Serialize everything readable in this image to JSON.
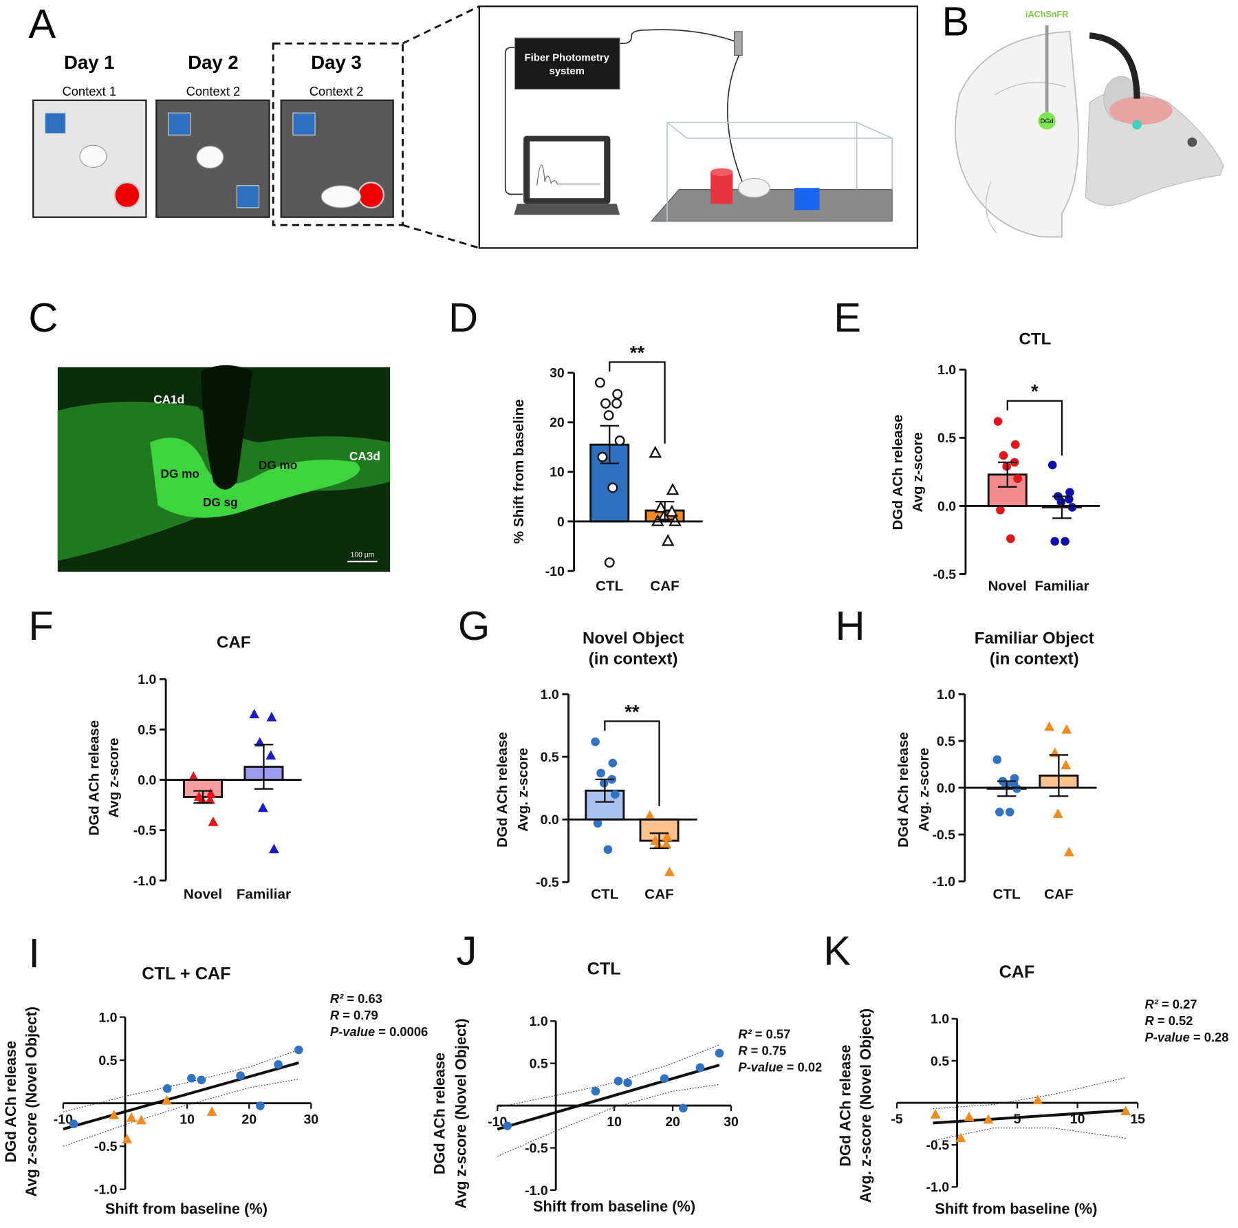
{
  "panel_a": {
    "letter": "A",
    "days": [
      {
        "day": "Day 1",
        "context": "Context 1"
      },
      {
        "day": "Day 2",
        "context": "Context 2"
      },
      {
        "day": "Day 3",
        "context": "Context 2"
      }
    ],
    "system": [
      "Fiber Photometry",
      "system"
    ]
  },
  "panel_b": {
    "letter": "B",
    "sensor": "iAChSnFR",
    "region": "DGd"
  },
  "panel_c": {
    "letter": "C",
    "regions": [
      "CA1d",
      "DG mo",
      "DG mo",
      "DG sg",
      "CA3d"
    ],
    "scale_bar": "100 µm"
  },
  "chart_data": [
    {
      "type": "bar",
      "panel": "D",
      "ylabel": [
        "% Shift from baseline"
      ],
      "categories": [
        "CTL",
        "CAF"
      ],
      "values": [
        15.5,
        2.2
      ],
      "errors": [
        3.8,
        1.8
      ],
      "colors": [
        "#2f6fc0",
        "#f28a1e"
      ],
      "points": [
        [
          28,
          25.7,
          23.8,
          23.8,
          21.4,
          16.3,
          13.0,
          6.8,
          -8.3
        ],
        [
          13.8,
          6.3,
          2.7,
          1.9,
          1.0,
          0,
          0,
          -4.0
        ]
      ],
      "markers": [
        "circle",
        "triangle"
      ],
      "marker_colors": [
        "#ffffff",
        "#ffffff"
      ],
      "marker_outline": true,
      "ylim": [
        -10,
        30
      ],
      "yticks": [
        -10,
        0,
        10,
        20,
        30
      ],
      "significance": "**"
    },
    {
      "type": "bar",
      "panel": "E",
      "title": [
        "CTL"
      ],
      "ylabel": [
        "DGd ACh release",
        "Avg z-score"
      ],
      "categories": [
        "Novel",
        "Familiar"
      ],
      "values": [
        0.23,
        -0.01
      ],
      "errors": [
        0.09,
        0.08
      ],
      "colors": [
        "#f28b8b",
        "#ffffff"
      ],
      "points": [
        [
          0.62,
          0.45,
          0.37,
          0.32,
          0.29,
          0.2,
          -0.03,
          -0.24
        ],
        [
          0.3,
          0.1,
          0.07,
          0.05,
          0.03,
          -0.01,
          -0.26,
          -0.26
        ]
      ],
      "markers": [
        "circle",
        "circle"
      ],
      "marker_colors": [
        "#e5141b",
        "#1010b0"
      ],
      "ylim": [
        -0.5,
        1
      ],
      "yticks": [
        -0.5,
        {
          "value": 0,
          "label": "0.0"
        },
        0.5,
        {
          "value": 1,
          "label": "1.0"
        }
      ],
      "significance": "*"
    },
    {
      "type": "bar",
      "panel": "F",
      "title": [
        "CAF"
      ],
      "ylabel": [
        "DGd ACh release",
        "Avg z-score"
      ],
      "categories": [
        "Novel",
        "Familiar"
      ],
      "values": [
        -0.17,
        0.13
      ],
      "errors": [
        0.06,
        0.22
      ],
      "colors": [
        "#f4a0a0",
        "#9b9bef"
      ],
      "points": [
        [
          0.03,
          -0.14,
          -0.17,
          -0.2,
          -0.2,
          -0.42
        ],
        [
          0.65,
          0.62,
          0.37,
          0.24,
          -0.28,
          -0.69
        ]
      ],
      "markers": [
        "triangle",
        "triangle"
      ],
      "marker_colors": [
        "#e5141b",
        "#1d1dc8"
      ],
      "ylim": [
        -1,
        1
      ],
      "yticks": [
        {
          "value": -1,
          "label": "-1.0"
        },
        -0.5,
        {
          "value": 0,
          "label": "0.0"
        },
        0.5,
        {
          "value": 1,
          "label": "1.0"
        }
      ]
    },
    {
      "type": "bar",
      "panel": "G",
      "title": [
        "Novel Object",
        "(in context)"
      ],
      "ylabel": [
        "DGd ACh release",
        "Avg. z-score"
      ],
      "categories": [
        "CTL",
        "CAF"
      ],
      "values": [
        0.23,
        -0.17
      ],
      "errors": [
        0.09,
        0.06
      ],
      "colors": [
        "#a9c1ee",
        "#fbc28e"
      ],
      "points": [
        [
          0.62,
          0.45,
          0.37,
          0.32,
          0.29,
          0.2,
          -0.03,
          -0.24
        ],
        [
          0.03,
          -0.14,
          -0.17,
          -0.2,
          -0.2,
          -0.42
        ]
      ],
      "markers": [
        "circle",
        "triangle"
      ],
      "marker_colors": [
        "#2f72c6",
        "#f28a1e"
      ],
      "ylim": [
        -0.5,
        1
      ],
      "yticks": [
        -0.5,
        {
          "value": 0,
          "label": "0.0"
        },
        0.5,
        {
          "value": 1,
          "label": "1.0"
        }
      ],
      "significance": "**"
    },
    {
      "type": "bar",
      "panel": "H",
      "title": [
        "Familiar Object",
        "(in context)"
      ],
      "ylabel": [
        "DGd ACh release",
        "Avg. z-score"
      ],
      "categories": [
        "CTL",
        "CAF"
      ],
      "values": [
        -0.01,
        0.13
      ],
      "errors": [
        0.08,
        0.22
      ],
      "colors": [
        "#ffffff",
        "#fbc28e"
      ],
      "points": [
        [
          0.3,
          0.1,
          0.07,
          0.05,
          0.03,
          -0.01,
          -0.26,
          -0.26
        ],
        [
          0.65,
          0.62,
          0.37,
          0.24,
          -0.28,
          -0.69
        ]
      ],
      "markers": [
        "circle",
        "triangle"
      ],
      "marker_colors": [
        "#2f72c6",
        "#f28a1e"
      ],
      "ylim": [
        -1,
        1
      ],
      "yticks": [
        {
          "value": -1,
          "label": "-1.0"
        },
        -0.5,
        {
          "value": 0,
          "label": "0.0"
        },
        0.5,
        {
          "value": 1,
          "label": "1.0"
        }
      ]
    },
    {
      "type": "scatter",
      "panel": "I",
      "title": "CTL + CAF",
      "ylabel": [
        "DGd ACh release",
        "Avg z-score (Novel Object)"
      ],
      "xlabel": "Shift from baseline (%)",
      "xlim": [
        -10,
        30
      ],
      "ylim": [
        -1,
        1
      ],
      "xticks": [
        -10,
        10,
        20,
        30
      ],
      "yticks": [
        {
          "value": -1,
          "label": "-1.0"
        },
        -0.5,
        0.5,
        {
          "value": 1,
          "label": "1.0"
        }
      ],
      "series": [
        {
          "color": "#2f72c6",
          "marker": "circle",
          "x": [
            -8.3,
            6.8,
            10.7,
            12.3,
            18.6,
            21.8,
            24.7,
            28
          ],
          "y": [
            -0.24,
            0.17,
            0.29,
            0.27,
            0.32,
            -0.03,
            0.45,
            0.62
          ]
        },
        {
          "color": "#f28a1e",
          "marker": "triangle",
          "x": [
            -1.8,
            0.3,
            1.0,
            2.6,
            6.7,
            14.0
          ],
          "y": [
            -0.14,
            -0.42,
            -0.17,
            -0.2,
            0.03,
            -0.1
          ]
        }
      ],
      "fit_line": {
        "x": [
          -10,
          28
        ],
        "y": [
          -0.3,
          0.47
        ]
      },
      "ci_upper": {
        "x": [
          -10,
          0,
          10,
          20,
          28
        ],
        "y": [
          -0.1,
          0.08,
          0.24,
          0.42,
          0.62
        ]
      },
      "ci_lower": {
        "x": [
          -10,
          0,
          10,
          20,
          28
        ],
        "y": [
          -0.5,
          -0.25,
          -0.02,
          0.18,
          0.28
        ]
      },
      "stats": [
        {
          "label": "R²",
          "text": " = 0.63"
        },
        {
          "label": "R",
          "text": " = 0.79"
        },
        {
          "label": "P-value",
          "text": " = 0.0006"
        }
      ]
    },
    {
      "type": "scatter",
      "panel": "J",
      "title": "CTL",
      "ylabel": [
        "DGd ACh release",
        "Avg z-score (Novel Object)"
      ],
      "xlabel": "Shift from baseline (%)",
      "xlim": [
        -10,
        30
      ],
      "ylim": [
        -1,
        1
      ],
      "xticks": [
        -10,
        10,
        20,
        30
      ],
      "yticks": [
        {
          "value": -1,
          "label": "-1.0"
        },
        -0.5,
        0.5,
        {
          "value": 1,
          "label": "1.0"
        }
      ],
      "series": [
        {
          "color": "#2f72c6",
          "marker": "circle",
          "x": [
            -8.3,
            6.8,
            10.7,
            12.3,
            18.6,
            21.8,
            24.7,
            28
          ],
          "y": [
            -0.24,
            0.17,
            0.29,
            0.27,
            0.32,
            -0.03,
            0.45,
            0.62
          ]
        }
      ],
      "fit_line": {
        "x": [
          -10,
          28
        ],
        "y": [
          -0.28,
          0.48
        ]
      },
      "ci_upper": {
        "x": [
          -10,
          0,
          10,
          20,
          28
        ],
        "y": [
          -0.02,
          0.12,
          0.27,
          0.5,
          0.72
        ]
      },
      "ci_lower": {
        "x": [
          -10,
          0,
          10,
          20,
          28
        ],
        "y": [
          -0.6,
          -0.3,
          -0.02,
          0.17,
          0.25
        ]
      },
      "stats": [
        {
          "label": "R²",
          "text": " = 0.57"
        },
        {
          "label": "R",
          "text": " = 0.75"
        },
        {
          "label": "P-value",
          "text": " = 0.02"
        }
      ]
    },
    {
      "type": "scatter",
      "panel": "K",
      "title": "CAF",
      "ylabel": [
        "DGd ACh release",
        "Avg. z-score (Novel Object)"
      ],
      "xlabel": "Shift from baseline (%)",
      "xlim": [
        -5,
        15
      ],
      "ylim": [
        -1,
        1
      ],
      "xticks": [
        -5,
        5,
        10,
        15
      ],
      "yticks": [
        {
          "value": -1,
          "label": "-1.0"
        },
        -0.5,
        0.5,
        {
          "value": 1,
          "label": "1.0"
        }
      ],
      "series": [
        {
          "color": "#f28a1e",
          "marker": "triangle",
          "x": [
            -1.8,
            0.3,
            1.0,
            2.6,
            6.7,
            14.0
          ],
          "y": [
            -0.14,
            -0.42,
            -0.17,
            -0.2,
            0.03,
            -0.1
          ]
        }
      ],
      "fit_line": {
        "x": [
          -2,
          14
        ],
        "y": [
          -0.24,
          -0.09
        ]
      },
      "ci_upper": {
        "x": [
          -2,
          3,
          8,
          14
        ],
        "y": [
          -0.07,
          -0.02,
          0.1,
          0.3
        ]
      },
      "ci_lower": {
        "x": [
          -2,
          3,
          8,
          14
        ],
        "y": [
          -0.45,
          -0.3,
          -0.3,
          -0.42
        ]
      },
      "stats": [
        {
          "label": "R²",
          "text": " = 0.27"
        },
        {
          "label": "R",
          "text": " = 0.52"
        },
        {
          "label": "P-value",
          "text": " = 0.28"
        }
      ]
    }
  ]
}
